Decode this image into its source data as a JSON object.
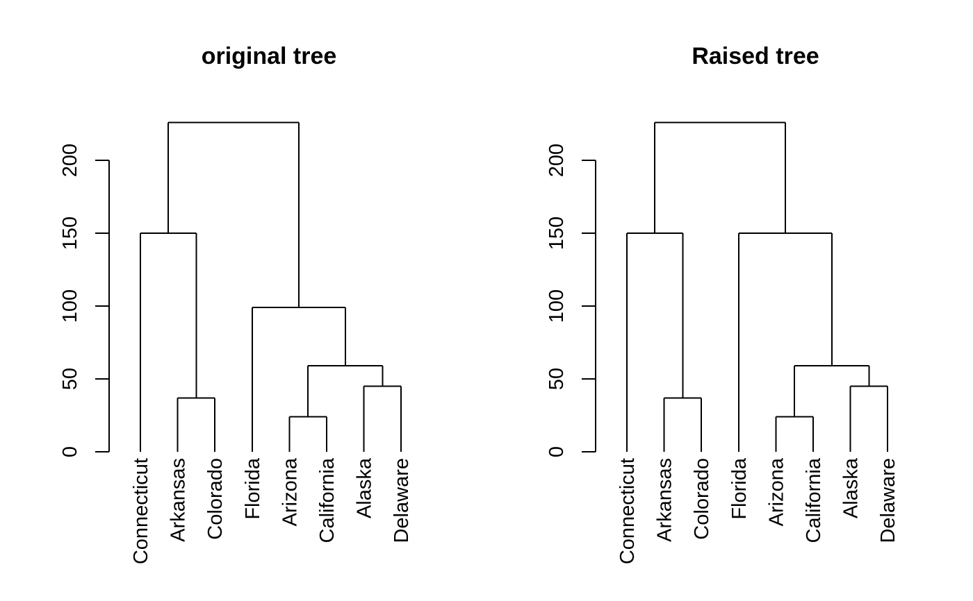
{
  "chart_data": [
    {
      "type": "dendrogram",
      "title": "original tree",
      "ylim": [
        0,
        225
      ],
      "yticks": [
        "0",
        "50",
        "100",
        "150",
        "200"
      ],
      "yticks_values": [
        0,
        50,
        100,
        150,
        200
      ],
      "leaves": [
        "Connecticut",
        "Arkansas",
        "Colorado",
        "Florida",
        "Arizona",
        "California",
        "Alaska",
        "Delaware"
      ],
      "merges": [
        {
          "children": [
            "Arizona",
            "California"
          ],
          "height": 24
        },
        {
          "children": [
            "Alaska",
            "Delaware"
          ],
          "height": 45
        },
        {
          "children": [
            "Arkansas",
            "Colorado"
          ],
          "height": 37
        },
        {
          "children": [
            "Arizona+California",
            "Alaska+Delaware"
          ],
          "height": 59
        },
        {
          "children": [
            "Florida",
            "Arizona+California+Alaska+Delaware"
          ],
          "height": 99
        },
        {
          "children": [
            "Connecticut",
            "Arkansas+Colorado"
          ],
          "height": 150
        },
        {
          "children": [
            "Connecticut+Arkansas+Colorado",
            "Florida+Arizona+California+Alaska+Delaware"
          ],
          "height": 226
        }
      ]
    },
    {
      "type": "dendrogram",
      "title": "Raised tree",
      "ylim": [
        0,
        225
      ],
      "yticks": [
        "0",
        "50",
        "100",
        "150",
        "200"
      ],
      "yticks_values": [
        0,
        50,
        100,
        150,
        200
      ],
      "leaves": [
        "Connecticut",
        "Arkansas",
        "Colorado",
        "Florida",
        "Arizona",
        "California",
        "Alaska",
        "Delaware"
      ],
      "merges": [
        {
          "children": [
            "Arizona",
            "California"
          ],
          "height": 24
        },
        {
          "children": [
            "Alaska",
            "Delaware"
          ],
          "height": 45
        },
        {
          "children": [
            "Arkansas",
            "Colorado"
          ],
          "height": 37
        },
        {
          "children": [
            "Arizona+California",
            "Alaska+Delaware"
          ],
          "height": 59
        },
        {
          "children": [
            "Florida",
            "Arizona+California+Alaska+Delaware"
          ],
          "height": 150
        },
        {
          "children": [
            "Connecticut",
            "Arkansas+Colorado"
          ],
          "height": 150
        },
        {
          "children": [
            "Connecticut+Arkansas+Colorado",
            "Florida+Arizona+California+Alaska+Delaware"
          ],
          "height": 226
        }
      ]
    }
  ]
}
